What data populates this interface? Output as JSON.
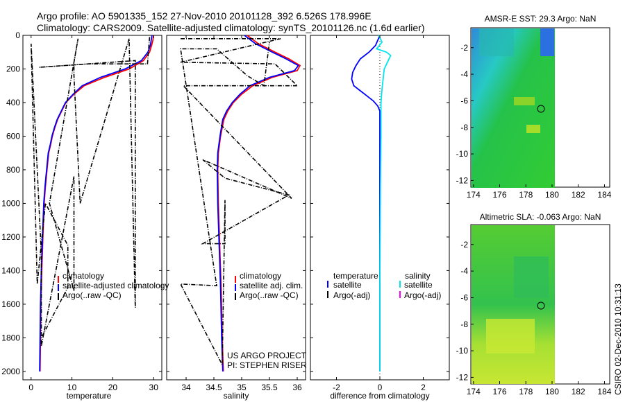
{
  "header": {
    "line1": "Argo profile: AO 5901335_152 27-Nov-2010 20101128_392 6.526S 178.996E",
    "line2": "Climatology: CARS2009. Satellite-adjusted climatology: synTS_20101126.nc (1.6d earlier)"
  },
  "side_label": "CSIRO 02-Dec-2010 10:31:13",
  "colors": {
    "climatology": "#ff0000",
    "satellite": "#0000ff",
    "argo": "#000000",
    "salinity_satellite": "#00e5ee",
    "salinity_argo": "#ff00ff"
  },
  "chart_data": [
    {
      "type": "line",
      "id": "temperature",
      "xlabel": "temperature",
      "ylabel": "",
      "xlim": [
        -2,
        32
      ],
      "ylim": [
        2050,
        0
      ],
      "xticks": [
        0,
        10,
        20,
        30
      ],
      "yticks": [
        0,
        200,
        400,
        600,
        800,
        1000,
        1200,
        1400,
        1600,
        1800,
        2000
      ],
      "legend": [
        "climatology",
        "satellite-adjusted climatology",
        "Argo(..raw -QC)"
      ],
      "series": [
        {
          "name": "climatology",
          "color": "#ff0000",
          "x": [
            30,
            29.8,
            29.5,
            29,
            27.5,
            24,
            18,
            13,
            10.5,
            8.5,
            7.5,
            6.5,
            5.8,
            5.2,
            4.8,
            4.3,
            3.9,
            3.5,
            3.2,
            2.9,
            2.6,
            2.4,
            2.2
          ],
          "y": [
            0,
            30,
            60,
            100,
            150,
            200,
            250,
            300,
            350,
            400,
            450,
            500,
            550,
            600,
            650,
            700,
            800,
            900,
            1000,
            1200,
            1400,
            1600,
            2000
          ]
        },
        {
          "name": "satellite-adjusted climatology",
          "color": "#0000ff",
          "x": [
            29.6,
            29.4,
            29.2,
            28.6,
            27,
            23,
            17,
            12.5,
            10.3,
            8.4,
            7.4,
            6.4,
            5.7,
            5.1,
            4.7,
            4.2,
            3.8,
            3.4,
            3.1,
            2.8,
            2.5,
            2.3,
            2.1
          ],
          "y": [
            0,
            30,
            60,
            100,
            150,
            200,
            250,
            300,
            350,
            400,
            450,
            500,
            550,
            600,
            650,
            700,
            800,
            900,
            1000,
            1200,
            1400,
            1600,
            2000
          ]
        },
        {
          "name": "Argo(..raw -QC)",
          "color": "#000000",
          "dash": true,
          "x": [
            29,
            28.5,
            14,
            2,
            25.5,
            25.5,
            24,
            12,
            10.5,
            10.5,
            11.5,
            4.5,
            10.5,
            10.5,
            2.5,
            2.5,
            0,
            1.5,
            3.5,
            9,
            9,
            2.5
          ],
          "y": [
            10,
            170,
            170,
            190,
            150,
            1620,
            20,
            1000,
            240,
            160,
            20,
            1000,
            1520,
            840,
            1850,
            1300,
            50,
            1480,
            1000,
            1250,
            1500,
            1800
          ]
        }
      ]
    },
    {
      "type": "line",
      "id": "salinity",
      "xlabel": "salinity",
      "ylabel": "",
      "xlim": [
        33.65,
        36.15
      ],
      "ylim": [
        2050,
        0
      ],
      "xticks": [
        34,
        34.5,
        35,
        35.5,
        36
      ],
      "legend": [
        "climatology",
        "satellite adj. clim.",
        "Argo(..raw -QC)"
      ],
      "annotation": [
        "US ARGO PROJECT",
        "PI: STEPHEN RISER"
      ],
      "series": [
        {
          "name": "climatology",
          "color": "#ff0000",
          "x": [
            35.1,
            35.3,
            35.6,
            35.85,
            36.05,
            36,
            35.55,
            35.2,
            35,
            34.85,
            34.75,
            34.68,
            34.62,
            34.58,
            34.57,
            34.58,
            34.6,
            34.63,
            34.65,
            34.67
          ],
          "y": [
            0,
            50,
            100,
            140,
            180,
            210,
            250,
            300,
            350,
            400,
            450,
            500,
            600,
            700,
            800,
            1000,
            1200,
            1500,
            1800,
            2000
          ]
        },
        {
          "name": "satellite adj. clim.",
          "color": "#0000ff",
          "x": [
            35.05,
            35.25,
            35.55,
            35.8,
            36.02,
            35.95,
            35.5,
            35.15,
            34.97,
            34.83,
            34.73,
            34.66,
            34.61,
            34.57,
            34.56,
            34.57,
            34.59,
            34.62,
            34.64,
            34.66
          ],
          "y": [
            0,
            50,
            100,
            140,
            180,
            210,
            250,
            300,
            350,
            400,
            450,
            500,
            600,
            700,
            800,
            1000,
            1200,
            1500,
            1800,
            2000
          ]
        },
        {
          "name": "Argo(..raw -QC)",
          "color": "#000000",
          "dash": true,
          "x": [
            33.9,
            35.7,
            33.9,
            35.6,
            36.0,
            33.95,
            35.9,
            34.3,
            34.7,
            35.85,
            34.3,
            34.7,
            34.7,
            34.65,
            33.9,
            34.55,
            33.9,
            34.55,
            35.1,
            35.4,
            35.5
          ],
          "y": [
            20,
            20,
            160,
            170,
            300,
            300,
            970,
            740,
            850,
            950,
            1240,
            1240,
            980,
            1960,
            1480,
            1490,
            80,
            80,
            240,
            300,
            40
          ]
        }
      ]
    },
    {
      "type": "line",
      "id": "difference",
      "xlabel": "difference from climatology",
      "ylabel": "",
      "xlim": [
        -3.2,
        3.2
      ],
      "ylim": [
        2050,
        0
      ],
      "xticks": [
        -2,
        0,
        2
      ],
      "legend_temperature": [
        "temperature",
        "satellite",
        "Argo(-adj)"
      ],
      "legend_salinity": [
        "salinity",
        "satellite",
        "Argo(-adj)"
      ],
      "series": [
        {
          "name": "temperature satellite",
          "color": "#0000ff",
          "x": [
            0,
            -0.2,
            -0.5,
            -0.9,
            -1.1,
            -1.25,
            -1.3,
            -1.2,
            -0.9,
            -0.6,
            -0.3,
            -0.1,
            0,
            0,
            0,
            0
          ],
          "y": [
            0,
            60,
            100,
            140,
            180,
            220,
            260,
            300,
            330,
            360,
            390,
            420,
            450,
            600,
            1200,
            2000
          ]
        },
        {
          "name": "salinity satellite",
          "color": "#00e5ee",
          "x": [
            -0.05,
            0.1,
            -0.15,
            0.3,
            0.5,
            0.35,
            0.2,
            0.15,
            0.1,
            0.05,
            0.05,
            0.03,
            0,
            0
          ],
          "y": [
            0,
            40,
            80,
            100,
            120,
            160,
            200,
            260,
            320,
            400,
            600,
            900,
            1500,
            2000
          ]
        }
      ]
    },
    {
      "type": "heatmap",
      "id": "sst-map",
      "title": "AMSR-E SST: 29.3 Argo: NaN",
      "xlim": [
        173.8,
        184.4
      ],
      "ylim": [
        -12.5,
        -0.5
      ],
      "xticks": [
        174,
        176,
        178,
        180,
        182,
        184
      ],
      "yticks": [
        -2,
        -4,
        -6,
        -8,
        -10,
        -12
      ],
      "data_extent_x": [
        174,
        180
      ],
      "marker": {
        "x": 179,
        "y": -6.5
      }
    },
    {
      "type": "heatmap",
      "id": "sla-map",
      "title": "Altimetric SLA: -0.063 Argo: NaN",
      "xlim": [
        173.8,
        184.4
      ],
      "ylim": [
        -12.5,
        -0.5
      ],
      "xticks": [
        174,
        176,
        178,
        180,
        182,
        184
      ],
      "yticks": [
        -2,
        -4,
        -6,
        -8,
        -10,
        -12
      ],
      "data_extent_x": [
        174,
        180
      ],
      "marker": {
        "x": 179,
        "y": -6.5
      }
    }
  ]
}
